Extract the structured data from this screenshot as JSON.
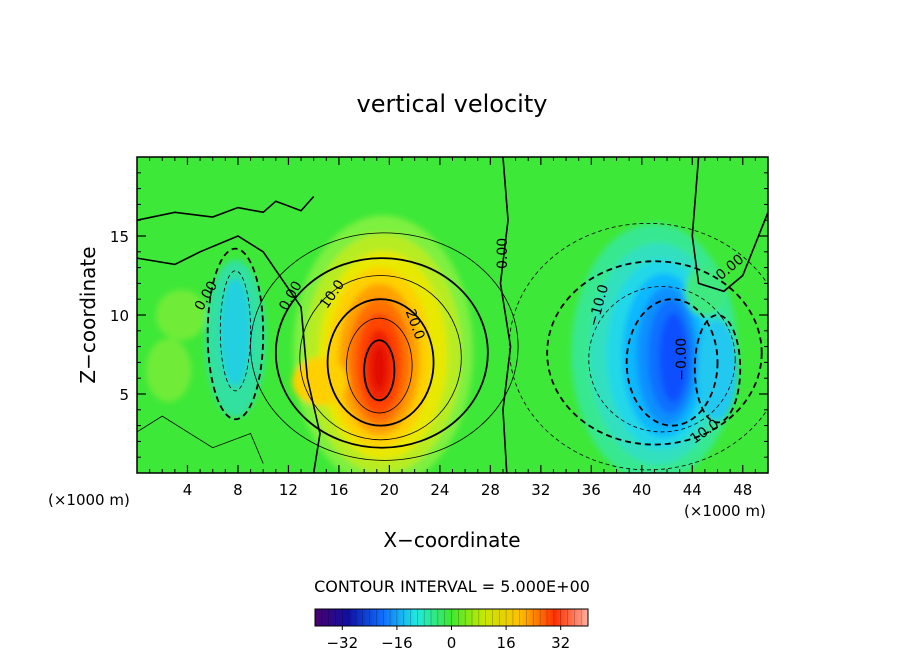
{
  "chart_data": {
    "type": "heatmap",
    "title": "vertical velocity",
    "xlabel": "X−coordinate",
    "ylabel": "Z−coordinate",
    "x_unit_left": "(×1000 m)",
    "x_unit_right": "(×1000 m)",
    "xlim": [
      0,
      50
    ],
    "ylim": [
      0,
      20
    ],
    "x_ticks": [
      4,
      8,
      12,
      16,
      20,
      24,
      28,
      32,
      36,
      40,
      44,
      48
    ],
    "x_tick_labels": [
      "4",
      "8",
      "12",
      "16",
      "20",
      "24",
      "28",
      "32",
      "36",
      "40",
      "44",
      "48"
    ],
    "y_ticks": [
      5,
      10,
      15
    ],
    "y_tick_labels": [
      "5",
      "10",
      "15"
    ],
    "contour_interval_text": "CONTOUR INTERVAL = 5.000E+00",
    "colorbar": {
      "range": [
        -40,
        40
      ],
      "tick_values": [
        -32,
        -16,
        0,
        16,
        32
      ],
      "tick_labels": [
        "−32",
        "−16",
        "0",
        "16",
        "32"
      ]
    },
    "contour_labels": [
      {
        "text": "0.00",
        "x": 5.5,
        "y": 11.2,
        "rot": -60
      },
      {
        "text": "0.00",
        "x": 12.2,
        "y": 11.2,
        "rot": -60
      },
      {
        "text": "10.0",
        "x": 15.5,
        "y": 11.3,
        "rot": -55
      },
      {
        "text": "20.0",
        "x": 22.0,
        "y": 9.4,
        "rot": 70
      },
      {
        "text": "0.00",
        "x": 29.0,
        "y": 13.9,
        "rot": -90
      },
      {
        "text": "−10.0",
        "x": 36.6,
        "y": 10.6,
        "rot": -75
      },
      {
        "text": "0.00",
        "x": 47.0,
        "y": 13.0,
        "rot": -40
      },
      {
        "text": "−0.00",
        "x": 43.2,
        "y": 7.2,
        "rot": -90
      },
      {
        "text": "10.0",
        "x": 45.0,
        "y": 2.6,
        "rot": -35
      }
    ],
    "features": [
      {
        "kind": "updraft",
        "x": 19.2,
        "y": 6.5,
        "peak": 38
      },
      {
        "kind": "downdraft",
        "x": 42.5,
        "y": 7.0,
        "peak": -30
      },
      {
        "kind": "downdraft",
        "x": 7.8,
        "y": 8.5,
        "peak": -12
      }
    ]
  }
}
